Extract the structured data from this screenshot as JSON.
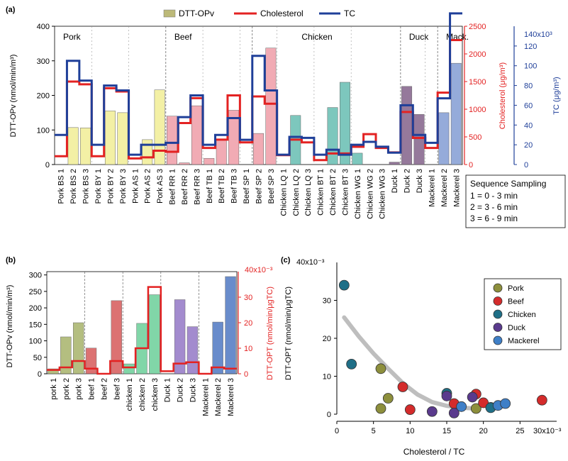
{
  "colors": {
    "pork": "#f2ef9c",
    "beef": "#f0a2ac",
    "chicken": "#6fc1b6",
    "duck": "#8a6b91",
    "mackerel": "#8aa3d6",
    "pork_b": "#a7b36a",
    "beef_b": "#d65a5a",
    "chicken_b": "#6ccf9a",
    "duck_b": "#9477c6",
    "mackerel_b": "#4f79c2",
    "chol": "#e32222",
    "tc": "#1f3f99",
    "fit": "#b3b3b3",
    "leg_pork": "#8d8f3c",
    "leg_beef": "#d42b2b",
    "leg_chicken": "#1f6f87",
    "leg_duck": "#5a3a8d",
    "leg_mackerel": "#3f7fc7"
  },
  "chart_data": [
    {
      "panel": "(a)",
      "type": "bar",
      "legend": [
        "DTT-OPv",
        "Cholesterol",
        "TC"
      ],
      "ylabel_left": "DTT-OPv (nmol/min/m³)",
      "ylabel_chol": "Cholesterol (μg/m³)",
      "ylabel_tc": "TC (μg/m³)",
      "tc_multiplier": "140x10³",
      "yticks_left": [
        "0",
        "100",
        "200",
        "300",
        "400"
      ],
      "yticks_chol": [
        "0",
        "500",
        "1000",
        "1500",
        "2000",
        "2500"
      ],
      "yticks_tc": [
        "0",
        "20",
        "40",
        "60",
        "80",
        "100",
        "120"
      ],
      "ylim_left": [
        0,
        400
      ],
      "ylim_chol": [
        0,
        2500
      ],
      "ylim_tc": [
        0,
        140000
      ],
      "groups": [
        {
          "label": "Pork",
          "start": 0,
          "end": 8
        },
        {
          "label": "Beef",
          "start": 9,
          "end": 15
        },
        {
          "label": "Chicken",
          "start": 16,
          "end": 27
        },
        {
          "label": "Duck",
          "start": 28,
          "end": 30
        },
        {
          "label": "Mack.",
          "start": 31,
          "end": 33
        }
      ],
      "categories": [
        "Pork BS 1",
        "Pork BS 2",
        "Pork BS 3",
        "Pork BY 1",
        "Pork BY 2",
        "Pork BY 3",
        "Pork AS 1",
        "Pork AS 2",
        "Pork AS 3",
        "Beef RR 1",
        "Beef RR 2",
        "Beef RR 3",
        "Beef TB 1",
        "Beef TB 2",
        "Beef TB 3",
        "Beef SP 1",
        "Beef SP 2",
        "Beef SP 3",
        "Chicken LQ 1",
        "Chicken LQ 2",
        "Chicken LQ 3",
        "Chicken BT 1",
        "Chicken BT 2",
        "Chicken BT 3",
        "Chicken WG 1",
        "Chicken WG 2",
        "Chicken WG 3",
        "Duck 1",
        "Duck 2",
        "Duck 3",
        "Mackerel 1",
        "Mackerel 2",
        "Mackerel 3"
      ],
      "dtt": [
        0,
        107,
        106,
        0,
        155,
        150,
        0,
        72,
        216,
        140,
        5,
        170,
        18,
        70,
        157,
        0,
        90,
        337,
        0,
        142,
        0,
        0,
        165,
        238,
        33,
        0,
        0,
        7,
        226,
        145,
        0,
        150,
        293
      ],
      "cholesterol": [
        150,
        1500,
        1450,
        150,
        1380,
        1320,
        110,
        130,
        250,
        230,
        750,
        1200,
        300,
        450,
        1250,
        400,
        1230,
        1100,
        170,
        450,
        400,
        80,
        200,
        200,
        320,
        550,
        300,
        220,
        950,
        480,
        300,
        1300,
        2250
      ],
      "tc": [
        30000,
        105000,
        85000,
        20000,
        80000,
        75000,
        10000,
        20000,
        20000,
        22000,
        48000,
        70000,
        20000,
        30000,
        47000,
        25000,
        110000,
        75000,
        10000,
        28000,
        27000,
        10000,
        15000,
        10000,
        20000,
        23000,
        18000,
        12000,
        60000,
        30000,
        22000,
        67000,
        153000
      ],
      "category_colors": [
        "pork",
        "pork",
        "pork",
        "pork",
        "pork",
        "pork",
        "pork",
        "pork",
        "pork",
        "beef",
        "beef",
        "beef",
        "beef",
        "beef",
        "beef",
        "beef",
        "beef",
        "beef",
        "chicken",
        "chicken",
        "chicken",
        "chicken",
        "chicken",
        "chicken",
        "chicken",
        "chicken",
        "chicken",
        "duck",
        "duck",
        "duck",
        "mackerel",
        "mackerel",
        "mackerel"
      ],
      "note_title": "Sequence Sampling",
      "note_lines": [
        "1 = 0 - 3 min",
        "2 = 3 - 6 min",
        "3 = 6 - 9 min"
      ]
    },
    {
      "panel": "(b)",
      "type": "bar",
      "ylabel_left": "DTT-OPv (nmol/min/m³)",
      "ylabel_right": "DTT-OPT (nmol/min/μgTC)",
      "right_multiplier": "40x10⁻³",
      "yticks_left": [
        "0",
        "50",
        "100",
        "150",
        "200",
        "250",
        "300"
      ],
      "yticks_right": [
        "0",
        "10",
        "20",
        "30"
      ],
      "ylim_left": [
        0,
        310
      ],
      "ylim_right": [
        0,
        40
      ],
      "categories": [
        "pork 1",
        "pork 2",
        "pork 3",
        "beef 1",
        "beef 2",
        "beef 3",
        "chicken 1",
        "chicken 2",
        "chicken 3",
        "Duck 1",
        "Duck 2",
        "Duck 3",
        "Mackerel 1",
        "Mackerel 2",
        "Mackerel 3"
      ],
      "dtt": [
        15,
        112,
        155,
        78,
        0,
        222,
        30,
        153,
        240,
        0,
        225,
        143,
        0,
        157,
        295
      ],
      "dtt_opt": [
        1.5,
        2.5,
        5,
        2,
        0,
        5,
        2.5,
        10,
        34,
        1,
        4,
        4.5,
        0,
        2.5,
        2
      ],
      "category_colors": [
        "pork_b",
        "pork_b",
        "pork_b",
        "beef_b",
        "beef_b",
        "beef_b",
        "chicken_b",
        "chicken_b",
        "chicken_b",
        "duck_b",
        "duck_b",
        "duck_b",
        "mackerel_b",
        "mackerel_b",
        "mackerel_b"
      ],
      "dividers_after": [
        2,
        5,
        8,
        11
      ]
    },
    {
      "panel": "(c)",
      "type": "scatter",
      "xlabel": "Cholesterol / TC",
      "ylabel": "DTT-OPT (nmol/min/μgTC)",
      "x_multiplier": "30x10⁻³",
      "y_multiplier": "40x10⁻³",
      "xlim": [
        0,
        30
      ],
      "ylim": [
        0,
        40
      ],
      "xticks": [
        "0",
        "5",
        "10",
        "15",
        "20",
        "25"
      ],
      "yticks": [
        "0",
        "10",
        "20",
        "30"
      ],
      "legend": [
        "Pork",
        "Beef",
        "Chicken",
        "Duck",
        "Mackerel"
      ],
      "legend_colors": [
        "leg_pork",
        "leg_beef",
        "leg_chicken",
        "leg_duck",
        "leg_mackerel"
      ],
      "fit_curve": [
        [
          1,
          25.5
        ],
        [
          3,
          20.5
        ],
        [
          5,
          16
        ],
        [
          7,
          12
        ],
        [
          9,
          8.2
        ],
        [
          11,
          5.2
        ],
        [
          13,
          3.2
        ],
        [
          15,
          2.2
        ],
        [
          17,
          1.7
        ],
        [
          19,
          1.5
        ]
      ],
      "points": [
        {
          "x": 6,
          "y": 12,
          "group": "leg_pork"
        },
        {
          "x": 7,
          "y": 4.2,
          "group": "leg_pork"
        },
        {
          "x": 6,
          "y": 1.5,
          "group": "leg_pork"
        },
        {
          "x": 19,
          "y": 1.5,
          "group": "leg_pork"
        },
        {
          "x": 21,
          "y": 1.8,
          "group": "leg_pork"
        },
        {
          "x": 9,
          "y": 7.2,
          "group": "leg_beef"
        },
        {
          "x": 10,
          "y": 1.2,
          "group": "leg_beef"
        },
        {
          "x": 16,
          "y": 2.8,
          "group": "leg_beef"
        },
        {
          "x": 19,
          "y": 5.3,
          "group": "leg_beef"
        },
        {
          "x": 20,
          "y": 3.0,
          "group": "leg_beef"
        },
        {
          "x": 28,
          "y": 3.7,
          "group": "leg_beef"
        },
        {
          "x": 1,
          "y": 34,
          "group": "leg_chicken"
        },
        {
          "x": 2,
          "y": 13.2,
          "group": "leg_chicken"
        },
        {
          "x": 15,
          "y": 5.5,
          "group": "leg_chicken"
        },
        {
          "x": 21,
          "y": 1.7,
          "group": "leg_chicken"
        },
        {
          "x": 13,
          "y": 0.7,
          "group": "leg_duck"
        },
        {
          "x": 15,
          "y": 4.8,
          "group": "leg_duck"
        },
        {
          "x": 18.5,
          "y": 4.5,
          "group": "leg_duck"
        },
        {
          "x": 16,
          "y": 0.3,
          "group": "leg_duck"
        },
        {
          "x": 17,
          "y": 2.0,
          "group": "leg_mackerel"
        },
        {
          "x": 22,
          "y": 2.3,
          "group": "leg_mackerel"
        },
        {
          "x": 23,
          "y": 2.8,
          "group": "leg_mackerel"
        }
      ]
    }
  ]
}
